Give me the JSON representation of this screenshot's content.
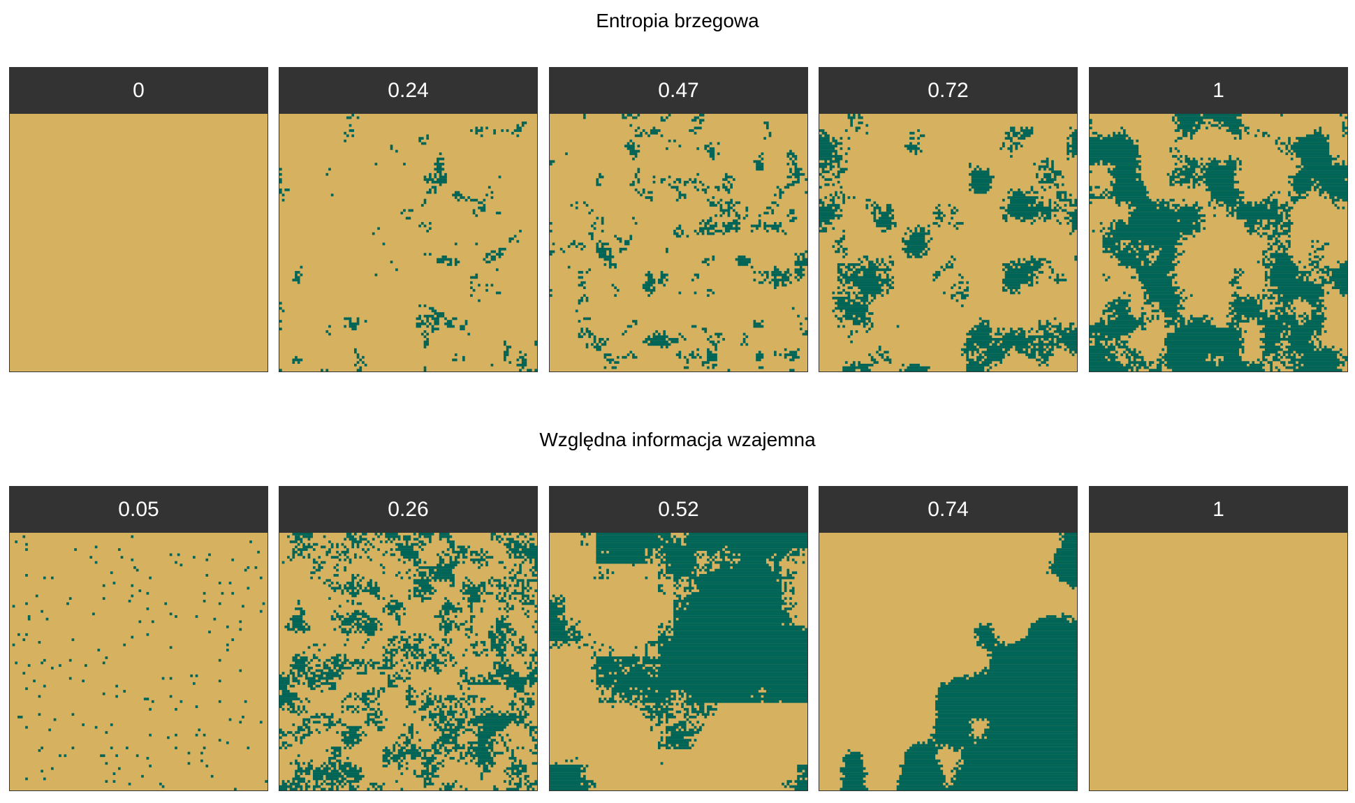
{
  "colors": {
    "background": "#d6b160",
    "patch": "#006457",
    "strip": "#333333",
    "strip_text": "#ffffff"
  },
  "rows": [
    {
      "title": "Entropia brzegowa",
      "panels": [
        {
          "label": "0",
          "patch_fraction": 0.0
        },
        {
          "label": "0.24",
          "patch_fraction": 0.04
        },
        {
          "label": "0.47",
          "patch_fraction": 0.09
        },
        {
          "label": "0.72",
          "patch_fraction": 0.19
        },
        {
          "label": "1",
          "patch_fraction": 0.45
        }
      ]
    },
    {
      "title": "Względna informacja wzajemna",
      "panels": [
        {
          "label": "0.05",
          "patch_fraction": 0.02
        },
        {
          "label": "0.26",
          "patch_fraction": 0.3
        },
        {
          "label": "0.52",
          "patch_fraction": 0.45
        },
        {
          "label": "0.74",
          "patch_fraction": 0.35
        },
        {
          "label": "1",
          "patch_fraction": 0.0
        }
      ]
    }
  ]
}
